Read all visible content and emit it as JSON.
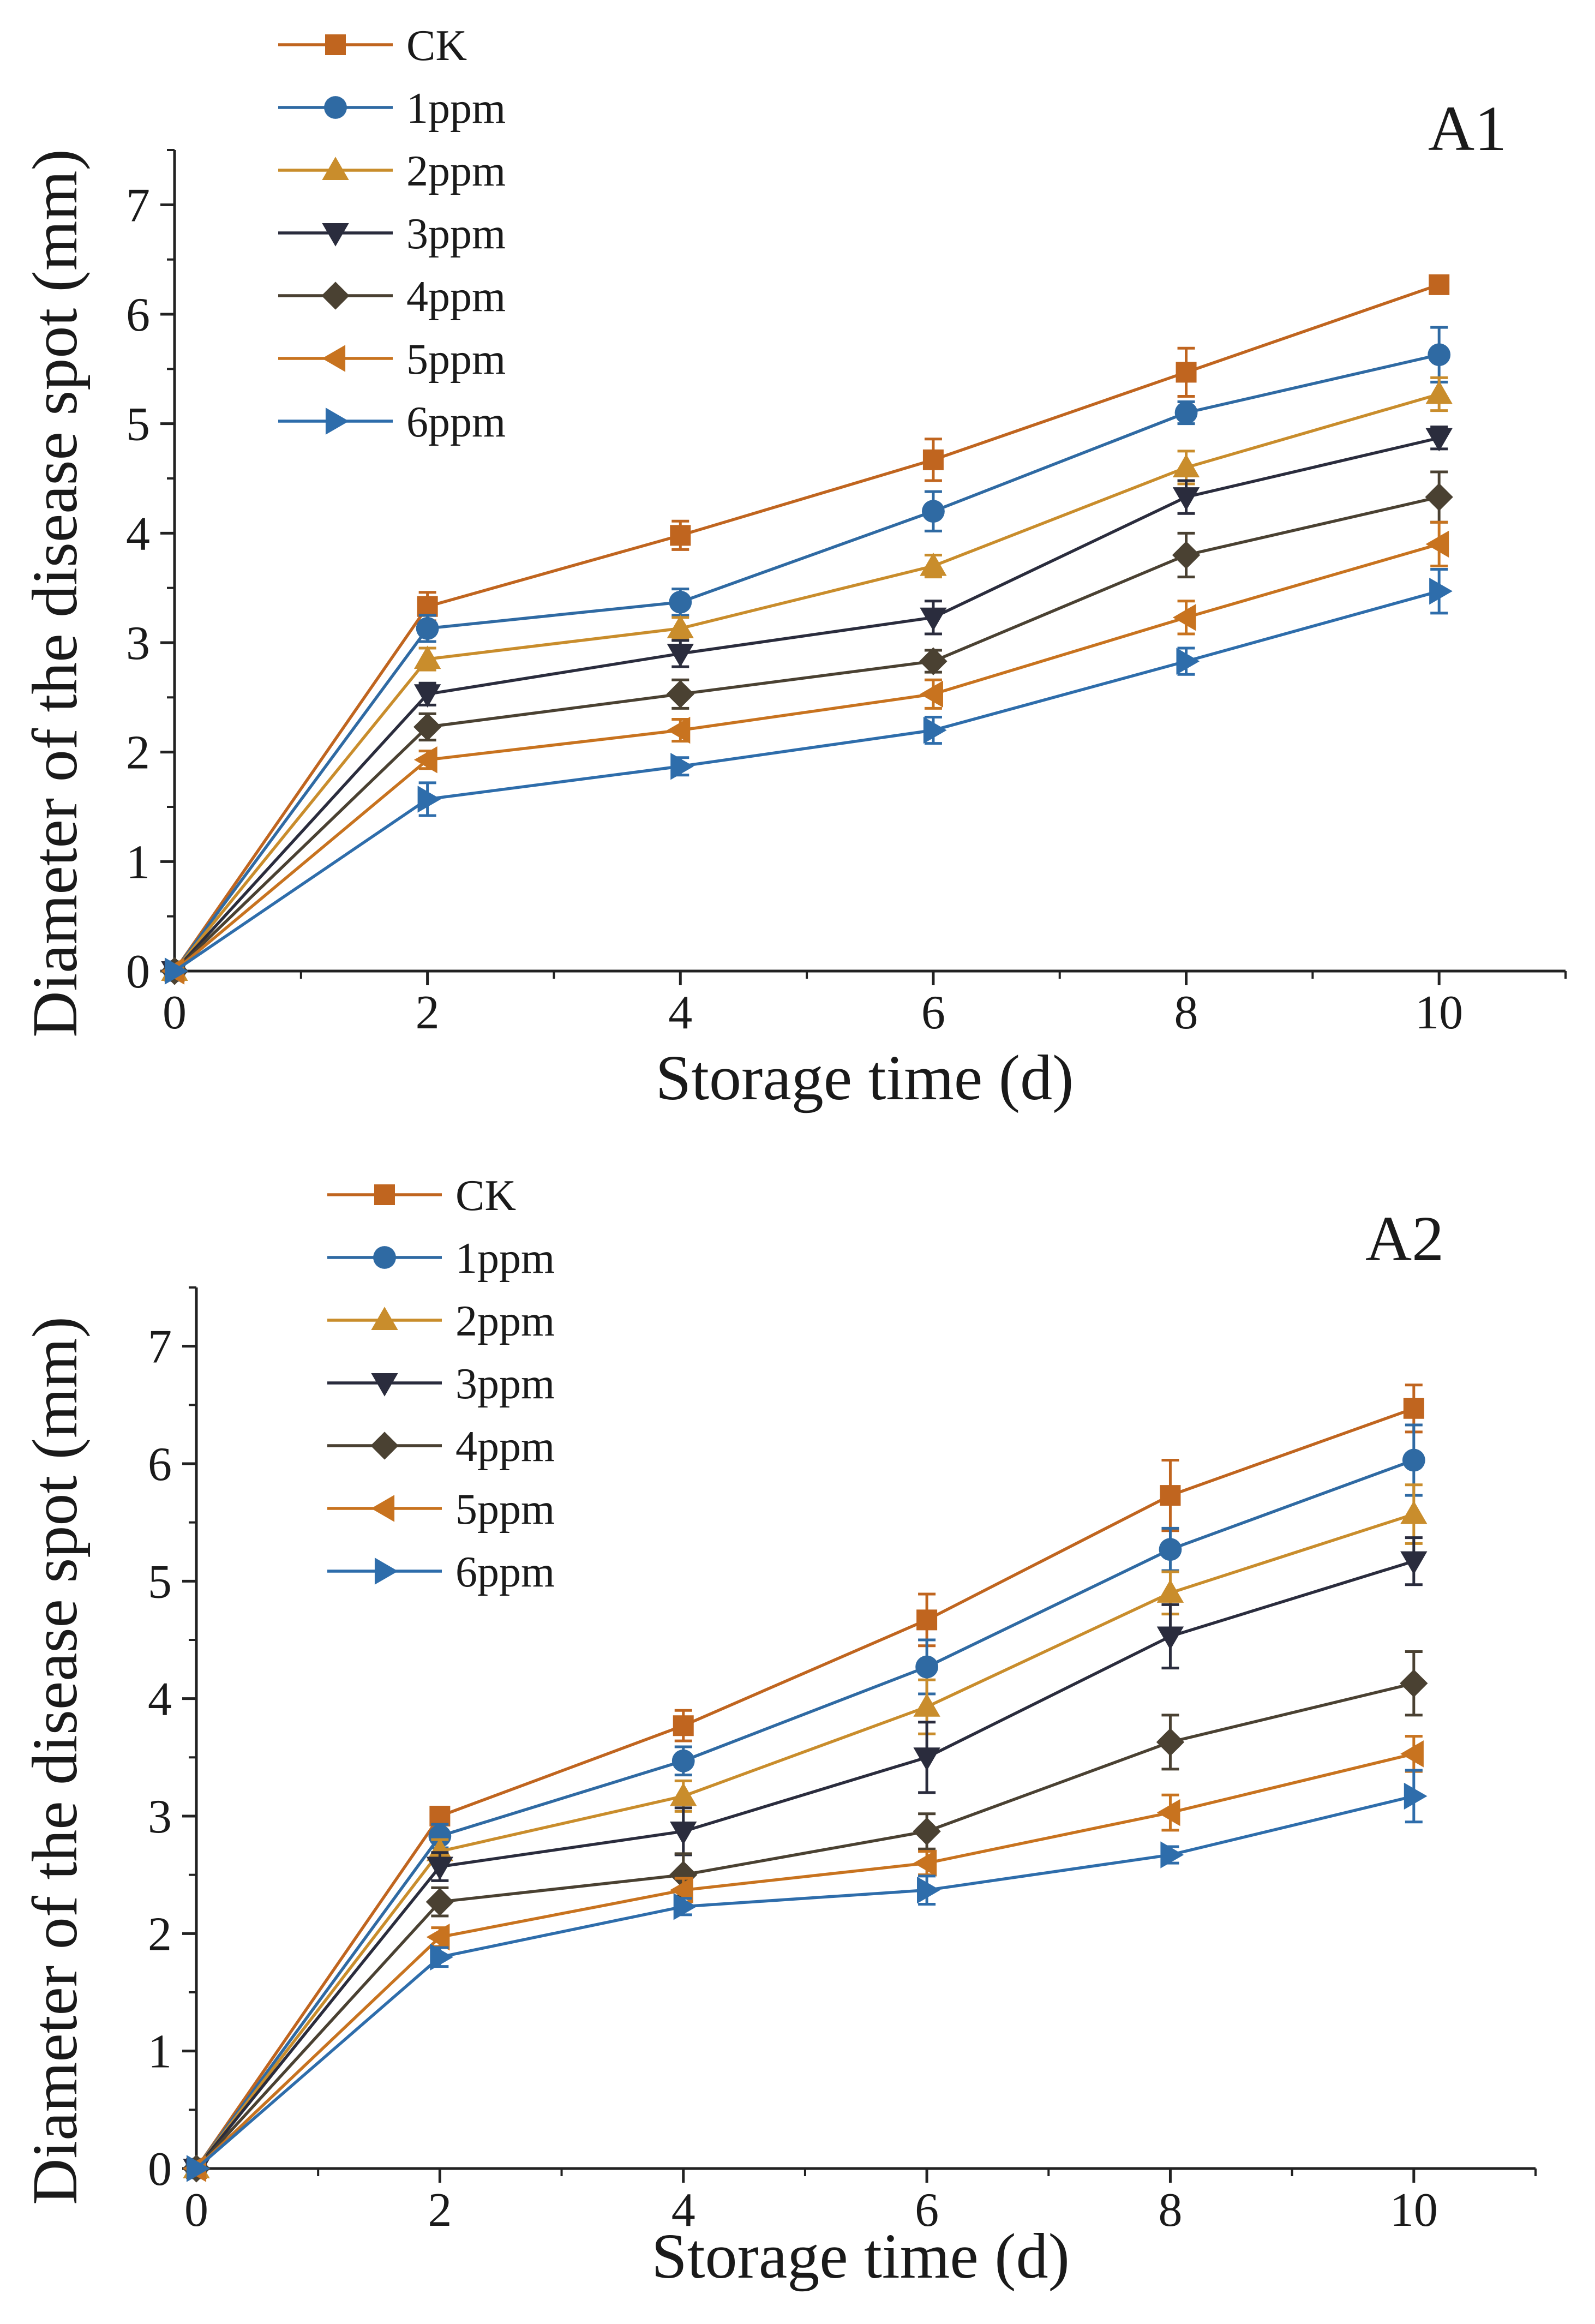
{
  "colors": {
    "CK": "#c0651f",
    "1ppm": "#2f6aa3",
    "2ppm": "#c98d2c",
    "3ppm": "#2a2c3d",
    "4ppm": "#4a4132",
    "5ppm": "#c8731f",
    "6ppm": "#2e6dab"
  },
  "markers": {
    "CK": "square",
    "1ppm": "circle",
    "2ppm": "triangle-up",
    "3ppm": "triangle-down",
    "4ppm": "diamond",
    "5ppm": "triangle-left",
    "6ppm": "triangle-right"
  },
  "chart_data": [
    {
      "type": "line",
      "panel_label": "A1",
      "xlabel": "Storage time (d)",
      "ylabel": "Diameter of the disease spot (mm)",
      "xlim": [
        0,
        11
      ],
      "ylim": [
        0,
        7.5
      ],
      "xticks": [
        0,
        2,
        4,
        6,
        8,
        10
      ],
      "yticks": [
        0,
        1,
        2,
        3,
        4,
        5,
        6,
        7
      ],
      "x": [
        0,
        2,
        4,
        6,
        8,
        10
      ],
      "legend": "top-left",
      "grid": false,
      "series": [
        {
          "name": "CK",
          "values": [
            0,
            3.33,
            3.98,
            4.67,
            5.47,
            6.27
          ],
          "errors": [
            0,
            0.13,
            0.13,
            0.19,
            0.22,
            0.07
          ]
        },
        {
          "name": "1ppm",
          "values": [
            0,
            3.13,
            3.37,
            4.2,
            5.1,
            5.63
          ],
          "errors": [
            0,
            0.12,
            0.12,
            0.18,
            0.1,
            0.25
          ]
        },
        {
          "name": "2ppm",
          "values": [
            0,
            2.85,
            3.13,
            3.7,
            4.6,
            5.27
          ],
          "errors": [
            0,
            0.1,
            0.1,
            0.1,
            0.15,
            0.15
          ]
        },
        {
          "name": "3ppm",
          "values": [
            0,
            2.53,
            2.9,
            3.23,
            4.33,
            4.87
          ],
          "errors": [
            0,
            0.1,
            0.12,
            0.15,
            0.15,
            0.1
          ]
        },
        {
          "name": "4ppm",
          "values": [
            0,
            2.23,
            2.53,
            2.83,
            3.8,
            4.33
          ],
          "errors": [
            0,
            0.12,
            0.13,
            0.1,
            0.2,
            0.23
          ]
        },
        {
          "name": "5ppm",
          "values": [
            0,
            1.93,
            2.2,
            2.53,
            3.23,
            3.9
          ],
          "errors": [
            0,
            0.08,
            0.1,
            0.13,
            0.15,
            0.2
          ]
        },
        {
          "name": "6ppm",
          "values": [
            0,
            1.57,
            1.87,
            2.2,
            2.83,
            3.47
          ],
          "errors": [
            0,
            0.15,
            0.08,
            0.12,
            0.12,
            0.2
          ]
        }
      ]
    },
    {
      "type": "line",
      "panel_label": "A2",
      "xlabel": "Storage time (d)",
      "ylabel": "Diameter of the disease spot (mm)",
      "xlim": [
        0,
        11
      ],
      "ylim": [
        0,
        7.5
      ],
      "xticks": [
        0,
        2,
        4,
        6,
        8,
        10
      ],
      "yticks": [
        0,
        1,
        2,
        3,
        4,
        5,
        6,
        7
      ],
      "x": [
        0,
        2,
        4,
        6,
        8,
        10
      ],
      "legend": "top-left",
      "grid": false,
      "series": [
        {
          "name": "CK",
          "values": [
            0,
            3.0,
            3.77,
            4.67,
            5.73,
            6.47
          ],
          "errors": [
            0,
            0.07,
            0.13,
            0.22,
            0.3,
            0.2
          ]
        },
        {
          "name": "1ppm",
          "values": [
            0,
            2.83,
            3.47,
            4.27,
            5.27,
            6.03
          ],
          "errors": [
            0,
            0.1,
            0.12,
            0.23,
            0.18,
            0.3
          ]
        },
        {
          "name": "2ppm",
          "values": [
            0,
            2.7,
            3.17,
            3.93,
            4.9,
            5.57
          ],
          "errors": [
            0,
            0.1,
            0.13,
            0.23,
            0.18,
            0.25
          ]
        },
        {
          "name": "3ppm",
          "values": [
            0,
            2.57,
            2.87,
            3.5,
            4.53,
            5.17
          ],
          "errors": [
            0,
            0.12,
            0.2,
            0.3,
            0.27,
            0.2
          ]
        },
        {
          "name": "4ppm",
          "values": [
            0,
            2.27,
            2.5,
            2.87,
            3.63,
            4.13
          ],
          "errors": [
            0,
            0.12,
            0.18,
            0.15,
            0.23,
            0.27
          ]
        },
        {
          "name": "5ppm",
          "values": [
            0,
            1.97,
            2.37,
            2.6,
            3.03,
            3.53
          ],
          "errors": [
            0,
            0.08,
            0.1,
            0.1,
            0.15,
            0.15
          ]
        },
        {
          "name": "6ppm",
          "values": [
            0,
            1.8,
            2.23,
            2.37,
            2.67,
            3.17
          ],
          "errors": [
            0,
            0.08,
            0.07,
            0.12,
            0.07,
            0.22
          ]
        }
      ]
    }
  ]
}
